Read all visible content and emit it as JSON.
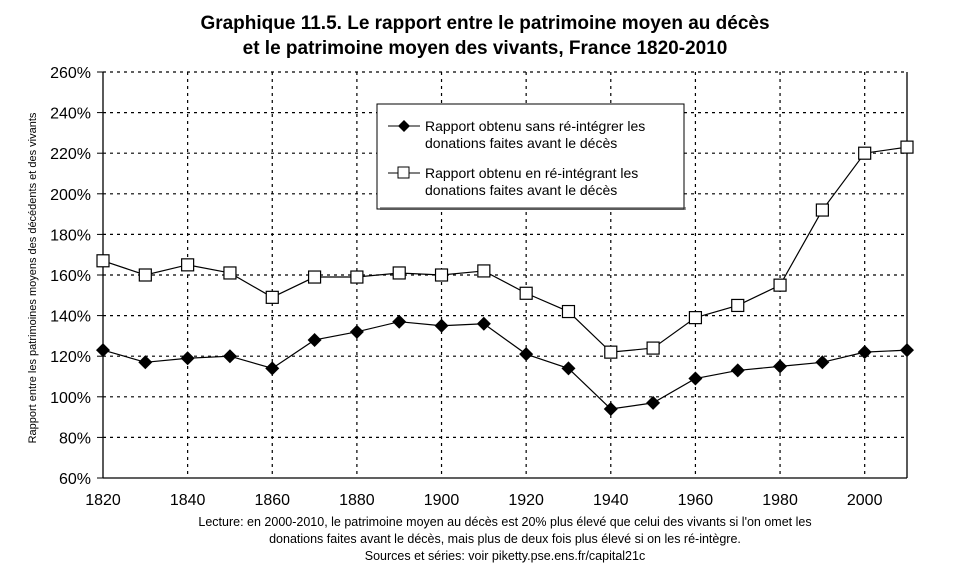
{
  "chart_data": {
    "type": "line",
    "title": [
      "Graphique 11.5. Le rapport entre le patrimoine moyen au décès",
      "et le patrimoine moyen des vivants, France 1820-2010"
    ],
    "ylabel": "Rapport entre les patrimoines moyens des décédents et des vivants",
    "xlabel": "",
    "xlim": [
      1820,
      2010
    ],
    "ylim": [
      60,
      260
    ],
    "x_ticks": [
      "1820",
      "1840",
      "1860",
      "1880",
      "1900",
      "1920",
      "1940",
      "1960",
      "1980",
      "2000"
    ],
    "y_ticks": [
      "60%",
      "80%",
      "100%",
      "120%",
      "140%",
      "160%",
      "180%",
      "200%",
      "220%",
      "240%",
      "260%"
    ],
    "grid": true,
    "legend_position": "top-center",
    "x": [
      1820,
      1830,
      1840,
      1850,
      1860,
      1870,
      1880,
      1890,
      1900,
      1910,
      1920,
      1930,
      1940,
      1950,
      1960,
      1970,
      1980,
      1990,
      2000,
      2010
    ],
    "series": [
      {
        "name": "Rapport obtenu sans ré-intégrer les donations faites avant le décès",
        "legend_lines": [
          "Rapport obtenu sans ré-intégrer les",
          "donations faites avant le décès"
        ],
        "marker": "filled-diamond",
        "color": "#000000",
        "values": [
          123,
          117,
          119,
          120,
          114,
          128,
          132,
          137,
          135,
          136,
          121,
          114,
          94,
          97,
          109,
          113,
          115,
          117,
          122,
          123
        ]
      },
      {
        "name": "Rapport obtenu en ré-intégrant les donations faites avant le décès",
        "legend_lines": [
          "Rapport obtenu en ré-intégrant les",
          "donations faites avant le décès"
        ],
        "marker": "open-square",
        "color": "#000000",
        "values": [
          167,
          160,
          165,
          161,
          149,
          159,
          159,
          161,
          160,
          162,
          151,
          142,
          122,
          124,
          139,
          145,
          155,
          192,
          220,
          223
        ]
      }
    ],
    "notes": [
      "Lecture: en 2000-2010, le patrimoine moyen au décès est 20% plus élevé que celui des vivants si l'on omet les",
      "donations faites avant le décès, mais plus de deux fois plus élevé si on les ré-intègre.",
      "Sources et séries: voir piketty.pse.ens.fr/capital21c"
    ]
  }
}
